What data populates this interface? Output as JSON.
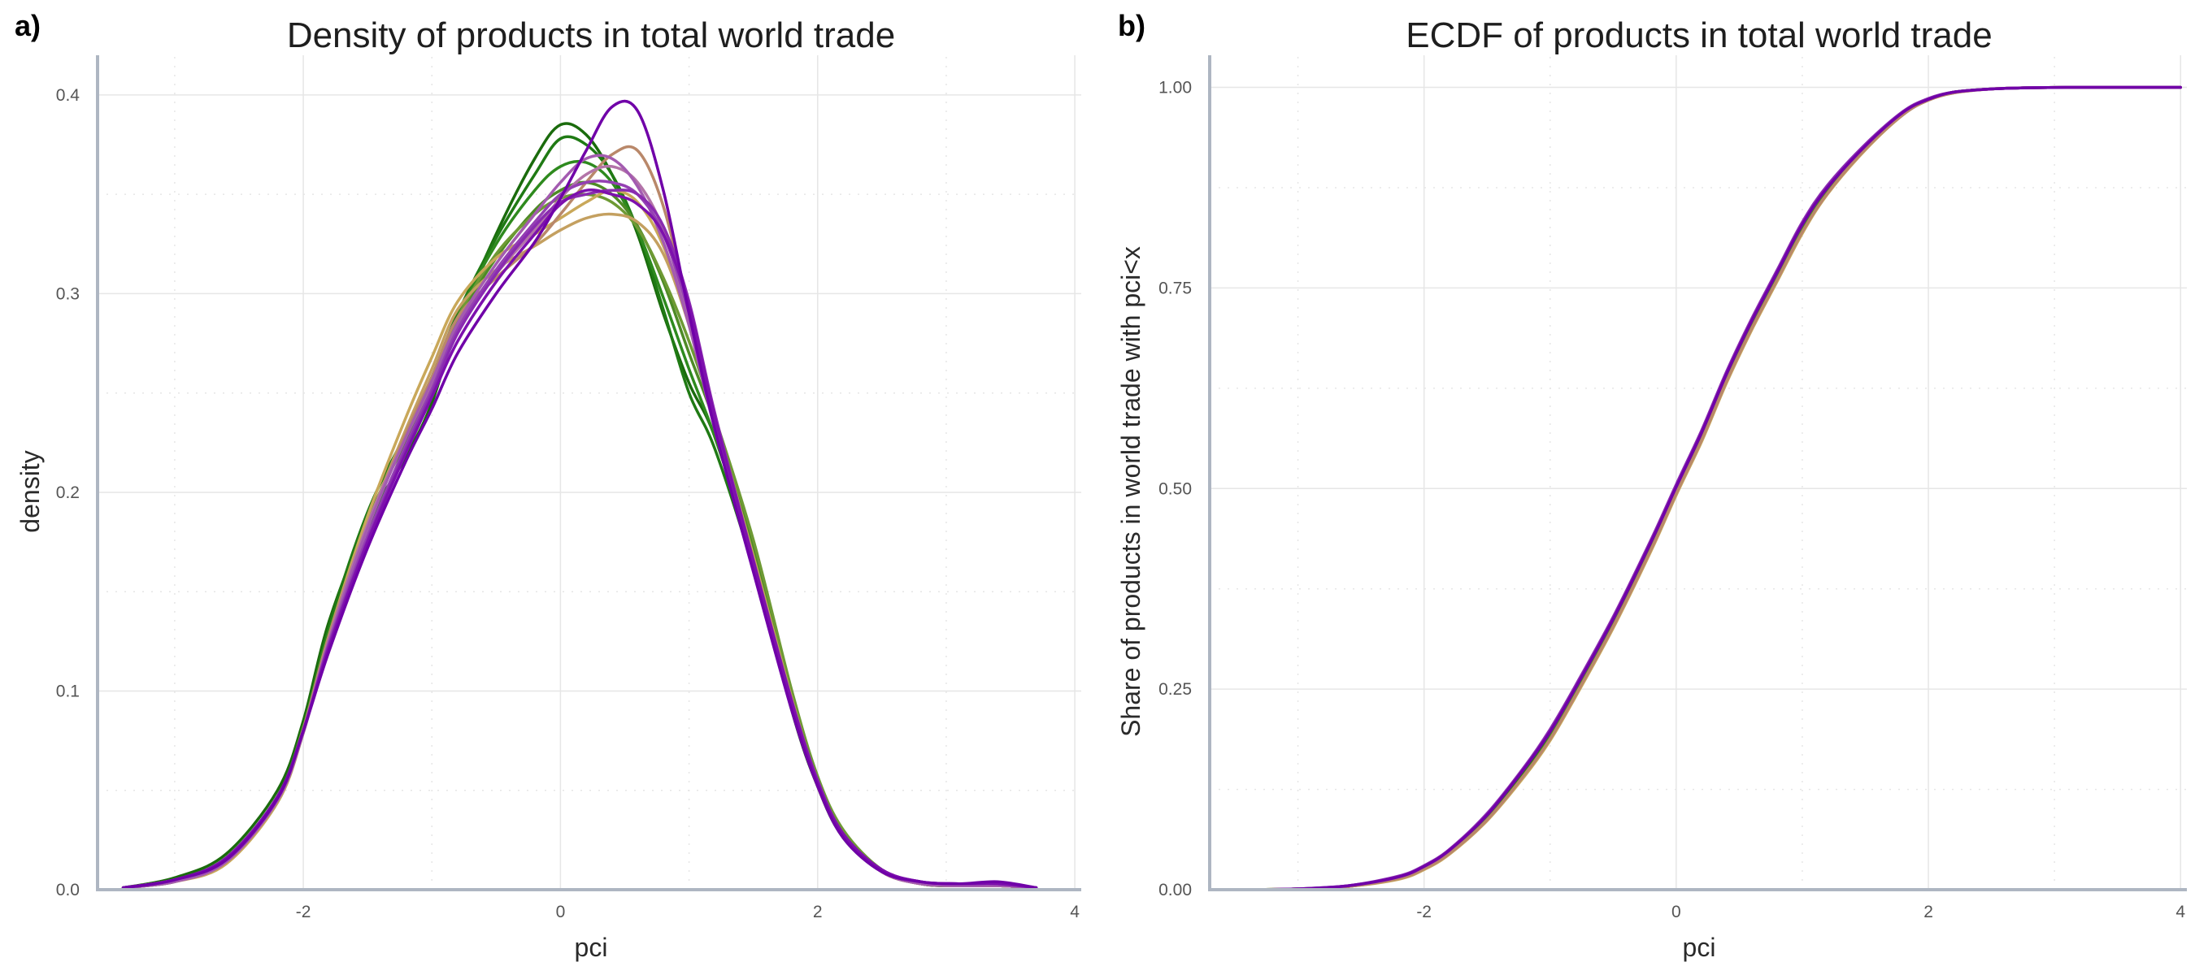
{
  "chart_data": [
    {
      "type": "line",
      "panel_tag": "a)",
      "title": "Density of products in total world trade",
      "xlabel": "pci",
      "ylabel": "density",
      "xlim": [
        -3.6,
        4.05
      ],
      "ylim": [
        0,
        0.42
      ],
      "x_ticks": [
        -2,
        0,
        2,
        4
      ],
      "x_tick_labels": [
        "-2",
        "0",
        "2",
        "4"
      ],
      "y_ticks": [
        0,
        0.1,
        0.2,
        0.3,
        0.4
      ],
      "y_tick_labels": [
        "0.0",
        "0.1",
        "0.2",
        "0.3",
        "0.4"
      ],
      "grid": true,
      "legend": "none",
      "x": [
        -3.4,
        -3.0,
        -2.6,
        -2.2,
        -2.0,
        -1.8,
        -1.5,
        -1.2,
        -1.0,
        -0.8,
        -0.5,
        -0.2,
        0.0,
        0.2,
        0.4,
        0.6,
        0.8,
        1.0,
        1.2,
        1.5,
        1.8,
        2.0,
        2.2,
        2.5,
        2.8,
        3.1,
        3.4,
        3.7
      ],
      "series": [
        {
          "color": "#1a6b0c",
          "values": [
            0.001,
            0.006,
            0.018,
            0.05,
            0.085,
            0.135,
            0.185,
            0.218,
            0.245,
            0.285,
            0.33,
            0.368,
            0.385,
            0.38,
            0.36,
            0.33,
            0.29,
            0.255,
            0.228,
            0.165,
            0.09,
            0.052,
            0.028,
            0.01,
            0.003,
            0.002,
            0.002,
            0.001
          ]
        },
        {
          "color": "#1f7a14",
          "values": [
            0.001,
            0.004,
            0.014,
            0.044,
            0.08,
            0.132,
            0.19,
            0.23,
            0.258,
            0.29,
            0.328,
            0.36,
            0.378,
            0.375,
            0.36,
            0.332,
            0.292,
            0.25,
            0.222,
            0.162,
            0.092,
            0.052,
            0.026,
            0.009,
            0.003,
            0.002,
            0.002,
            0.001
          ]
        },
        {
          "color": "#2e8a1e",
          "values": [
            0.001,
            0.005,
            0.016,
            0.047,
            0.082,
            0.13,
            0.182,
            0.22,
            0.25,
            0.288,
            0.325,
            0.352,
            0.364,
            0.366,
            0.356,
            0.332,
            0.298,
            0.262,
            0.228,
            0.168,
            0.094,
            0.054,
            0.028,
            0.009,
            0.003,
            0.002,
            0.002,
            0.001
          ]
        },
        {
          "color": "#4e8a26",
          "values": [
            0.001,
            0.005,
            0.015,
            0.046,
            0.081,
            0.128,
            0.186,
            0.226,
            0.255,
            0.286,
            0.318,
            0.342,
            0.352,
            0.356,
            0.35,
            0.334,
            0.306,
            0.27,
            0.235,
            0.172,
            0.098,
            0.056,
            0.029,
            0.01,
            0.003,
            0.002,
            0.002,
            0.001
          ]
        },
        {
          "color": "#6e9a34",
          "values": [
            0.001,
            0.004,
            0.014,
            0.045,
            0.079,
            0.126,
            0.184,
            0.228,
            0.258,
            0.288,
            0.32,
            0.34,
            0.348,
            0.35,
            0.346,
            0.333,
            0.308,
            0.276,
            0.238,
            0.176,
            0.1,
            0.057,
            0.03,
            0.01,
            0.003,
            0.002,
            0.002,
            0.001
          ]
        },
        {
          "color": "#c9a85a",
          "values": [
            0.001,
            0.004,
            0.013,
            0.044,
            0.079,
            0.128,
            0.188,
            0.238,
            0.268,
            0.296,
            0.318,
            0.33,
            0.338,
            0.346,
            0.352,
            0.346,
            0.324,
            0.285,
            0.238,
            0.168,
            0.096,
            0.054,
            0.028,
            0.009,
            0.003,
            0.002,
            0.002,
            0.001
          ]
        },
        {
          "color": "#c4a060",
          "values": [
            0.001,
            0.005,
            0.014,
            0.045,
            0.08,
            0.128,
            0.184,
            0.232,
            0.262,
            0.292,
            0.312,
            0.324,
            0.332,
            0.338,
            0.34,
            0.336,
            0.32,
            0.284,
            0.236,
            0.166,
            0.095,
            0.054,
            0.028,
            0.009,
            0.003,
            0.002,
            0.002,
            0.001
          ]
        },
        {
          "color": "#b9886a",
          "values": [
            0.001,
            0.005,
            0.015,
            0.046,
            0.081,
            0.128,
            0.184,
            0.23,
            0.258,
            0.288,
            0.308,
            0.325,
            0.34,
            0.356,
            0.37,
            0.372,
            0.344,
            0.29,
            0.232,
            0.162,
            0.092,
            0.052,
            0.027,
            0.009,
            0.003,
            0.002,
            0.002,
            0.001
          ]
        },
        {
          "color": "#b374a8",
          "values": [
            0.001,
            0.005,
            0.015,
            0.046,
            0.08,
            0.126,
            0.184,
            0.228,
            0.255,
            0.284,
            0.31,
            0.332,
            0.348,
            0.36,
            0.364,
            0.356,
            0.332,
            0.286,
            0.232,
            0.162,
            0.092,
            0.053,
            0.027,
            0.009,
            0.003,
            0.002,
            0.002,
            0.001
          ]
        },
        {
          "color": "#a35bb0",
          "values": [
            0.001,
            0.004,
            0.014,
            0.045,
            0.079,
            0.125,
            0.182,
            0.228,
            0.256,
            0.285,
            0.315,
            0.34,
            0.356,
            0.368,
            0.368,
            0.354,
            0.326,
            0.284,
            0.232,
            0.162,
            0.092,
            0.053,
            0.027,
            0.009,
            0.003,
            0.002,
            0.002,
            0.001
          ]
        },
        {
          "color": "#9440b3",
          "values": [
            0.001,
            0.005,
            0.015,
            0.046,
            0.08,
            0.124,
            0.178,
            0.224,
            0.252,
            0.282,
            0.312,
            0.336,
            0.35,
            0.356,
            0.356,
            0.35,
            0.33,
            0.29,
            0.236,
            0.164,
            0.094,
            0.054,
            0.028,
            0.01,
            0.004,
            0.003,
            0.003,
            0.001
          ]
        },
        {
          "color": "#8a2bb0",
          "values": [
            0.001,
            0.005,
            0.015,
            0.046,
            0.08,
            0.123,
            0.176,
            0.222,
            0.25,
            0.28,
            0.31,
            0.334,
            0.346,
            0.35,
            0.352,
            0.35,
            0.334,
            0.296,
            0.24,
            0.166,
            0.095,
            0.055,
            0.028,
            0.01,
            0.004,
            0.003,
            0.003,
            0.001
          ]
        },
        {
          "color": "#7d10ad",
          "values": [
            0.001,
            0.005,
            0.016,
            0.047,
            0.08,
            0.122,
            0.175,
            0.22,
            0.248,
            0.276,
            0.306,
            0.33,
            0.345,
            0.352,
            0.35,
            0.345,
            0.33,
            0.294,
            0.238,
            0.165,
            0.094,
            0.054,
            0.028,
            0.01,
            0.004,
            0.003,
            0.003,
            0.001
          ]
        },
        {
          "color": "#7000a8",
          "values": [
            0.001,
            0.005,
            0.015,
            0.046,
            0.08,
            0.12,
            0.172,
            0.216,
            0.242,
            0.27,
            0.3,
            0.326,
            0.348,
            0.372,
            0.394,
            0.392,
            0.352,
            0.29,
            0.232,
            0.16,
            0.09,
            0.052,
            0.026,
            0.009,
            0.004,
            0.003,
            0.004,
            0.001
          ]
        }
      ]
    },
    {
      "type": "line",
      "panel_tag": "b)",
      "title": "ECDF of products in total world trade",
      "xlabel": "pci",
      "ylabel": "Share of products in world trade with pci<x",
      "xlim": [
        -3.7,
        4.05
      ],
      "ylim": [
        0,
        1.04
      ],
      "x_ticks": [
        -2,
        0,
        2,
        4
      ],
      "x_tick_labels": [
        "-2",
        "0",
        "2",
        "4"
      ],
      "y_ticks": [
        0,
        0.25,
        0.5,
        0.75,
        1.0
      ],
      "y_tick_labels": [
        "0.00",
        "0.25",
        "0.50",
        "0.75",
        "1.00"
      ],
      "grid": true,
      "legend": "none",
      "x": [
        -3.4,
        -3.0,
        -2.6,
        -2.2,
        -2.0,
        -1.8,
        -1.5,
        -1.2,
        -1.0,
        -0.8,
        -0.5,
        -0.2,
        0.0,
        0.2,
        0.4,
        0.6,
        0.8,
        1.0,
        1.2,
        1.5,
        1.8,
        2.0,
        2.2,
        2.5,
        2.8,
        3.1,
        3.4,
        4.0
      ],
      "series": [
        {
          "color": "#1a6b0c",
          "values": [
            0.0,
            0.001,
            0.004,
            0.015,
            0.028,
            0.047,
            0.092,
            0.15,
            0.195,
            0.248,
            0.335,
            0.43,
            0.5,
            0.566,
            0.64,
            0.705,
            0.765,
            0.825,
            0.872,
            0.925,
            0.968,
            0.985,
            0.994,
            0.998,
            0.9995,
            1.0,
            1.0,
            1.0
          ]
        },
        {
          "color": "#4e8a26",
          "values": [
            0.0,
            0.001,
            0.004,
            0.014,
            0.026,
            0.045,
            0.088,
            0.145,
            0.19,
            0.244,
            0.33,
            0.426,
            0.496,
            0.562,
            0.636,
            0.702,
            0.762,
            0.822,
            0.87,
            0.924,
            0.967,
            0.985,
            0.994,
            0.998,
            0.9995,
            1.0,
            1.0,
            1.0
          ]
        },
        {
          "color": "#c9a85a",
          "values": [
            0.0,
            0.001,
            0.004,
            0.013,
            0.025,
            0.044,
            0.086,
            0.142,
            0.186,
            0.24,
            0.326,
            0.422,
            0.492,
            0.558,
            0.632,
            0.698,
            0.758,
            0.818,
            0.867,
            0.922,
            0.966,
            0.984,
            0.993,
            0.998,
            0.9995,
            1.0,
            1.0,
            1.0
          ]
        },
        {
          "color": "#b9886a",
          "values": [
            0.0,
            0.001,
            0.004,
            0.014,
            0.026,
            0.045,
            0.087,
            0.144,
            0.188,
            0.242,
            0.328,
            0.424,
            0.494,
            0.56,
            0.634,
            0.7,
            0.76,
            0.82,
            0.868,
            0.923,
            0.966,
            0.984,
            0.993,
            0.998,
            0.9995,
            1.0,
            1.0,
            1.0
          ]
        },
        {
          "color": "#a35bb0",
          "values": [
            0.0,
            0.001,
            0.005,
            0.016,
            0.029,
            0.049,
            0.094,
            0.152,
            0.198,
            0.252,
            0.338,
            0.434,
            0.503,
            0.57,
            0.644,
            0.71,
            0.77,
            0.83,
            0.876,
            0.928,
            0.969,
            0.986,
            0.994,
            0.998,
            0.9995,
            1.0,
            1.0,
            1.0
          ]
        },
        {
          "color": "#8a2bb0",
          "values": [
            0.0,
            0.001,
            0.005,
            0.017,
            0.03,
            0.05,
            0.095,
            0.154,
            0.2,
            0.254,
            0.34,
            0.436,
            0.505,
            0.572,
            0.646,
            0.712,
            0.772,
            0.832,
            0.878,
            0.929,
            0.97,
            0.986,
            0.994,
            0.998,
            0.9995,
            1.0,
            1.0,
            1.0
          ]
        },
        {
          "color": "#7000a8",
          "values": [
            0.0,
            0.001,
            0.005,
            0.016,
            0.029,
            0.049,
            0.093,
            0.152,
            0.197,
            0.251,
            0.337,
            0.433,
            0.502,
            0.569,
            0.643,
            0.709,
            0.769,
            0.829,
            0.875,
            0.927,
            0.969,
            0.985,
            0.994,
            0.998,
            0.9995,
            1.0,
            1.0,
            1.0
          ]
        }
      ]
    }
  ]
}
